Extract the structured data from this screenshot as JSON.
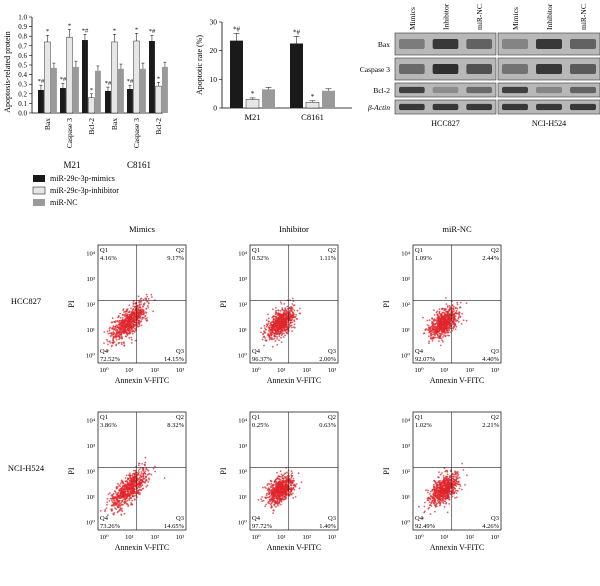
{
  "colors": {
    "mimics": "#1a1a1a",
    "inhibitor": "#e6e6e6",
    "nc": "#9a9a9a",
    "dots": "#e0262b"
  },
  "legend": [
    "miR-29c-3p-mimics",
    "miR-29c-3p-inhibitor",
    "miR-NC"
  ],
  "chart_data": [
    {
      "type": "bar",
      "ylabel": "Apoptosis-related protein",
      "ylim": [
        0,
        1.0
      ],
      "yticks": [
        "0.0",
        "0.1",
        "0.2",
        "0.3",
        "0.4",
        "0.5",
        "0.6",
        "0.7",
        "0.8",
        "0.9",
        "1.0"
      ],
      "groups": [
        "M21",
        "C8161"
      ],
      "categories": [
        "Bax",
        "Caspase 3",
        "Bcl-2"
      ],
      "series": [
        {
          "name": "miR-29c-3p-mimics",
          "values": [
            [
              0.24,
              0.26,
              0.76
            ],
            [
              0.23,
              0.25,
              0.75
            ]
          ],
          "err": [
            [
              0.05,
              0.05,
              0.06
            ],
            [
              0.04,
              0.04,
              0.06
            ]
          ]
        },
        {
          "name": "miR-29c-3p-inhibitor",
          "values": [
            [
              0.74,
              0.79,
              0.16
            ],
            [
              0.74,
              0.75,
              0.28
            ]
          ],
          "err": [
            [
              0.07,
              0.08,
              0.04
            ],
            [
              0.08,
              0.08,
              0.04
            ]
          ]
        },
        {
          "name": "miR-NC",
          "values": [
            [
              0.47,
              0.48,
              0.44
            ],
            [
              0.46,
              0.46,
              0.48
            ]
          ],
          "err": [
            [
              0.05,
              0.06,
              0.05
            ],
            [
              0.05,
              0.06,
              0.05
            ]
          ]
        }
      ],
      "marks": {
        "mimics": [
          [
            "*#",
            "*#",
            "*#"
          ],
          [
            "*#",
            "*#",
            "*#"
          ]
        ],
        "inhibitor": [
          [
            "*",
            "*",
            "*"
          ],
          [
            "*",
            "*",
            "*"
          ]
        ]
      }
    },
    {
      "type": "bar",
      "ylabel": "Apoptotic rate (%)",
      "ylim": [
        0,
        30
      ],
      "yticks": [
        "0",
        "10",
        "20",
        "30"
      ],
      "categories": [
        "M21",
        "C8161"
      ],
      "series": [
        {
          "name": "miR-29c-3p-mimics",
          "values": [
            23.5,
            22.5
          ],
          "err": [
            2.5,
            2.5
          ]
        },
        {
          "name": "miR-29c-3p-inhibitor",
          "values": [
            3.0,
            2.0
          ],
          "err": [
            0.5,
            0.5
          ]
        },
        {
          "name": "miR-NC",
          "values": [
            6.5,
            6.0
          ],
          "err": [
            0.7,
            0.7
          ]
        }
      ],
      "marks": {
        "mimics": [
          "*#",
          "*#"
        ],
        "inhibitor": [
          "*",
          "*"
        ]
      }
    },
    {
      "type": "scatter",
      "xlabel": "Annexin V-FITC",
      "ylabel": "PI",
      "rows": [
        "HCC827",
        "NCI-H524"
      ],
      "columns": [
        "Mimics",
        "Inhibitor",
        "miR-NC"
      ],
      "xticks": [
        "10⁰",
        "10¹",
        "10²",
        "10³"
      ],
      "yticks": [
        "10⁰",
        "10¹",
        "10²",
        "10³",
        "10⁴"
      ],
      "quadrant_names": [
        "Q1",
        "Q2",
        "Q3",
        "Q4"
      ],
      "panels": [
        [
          {
            "Q1": "4.16%",
            "Q2": "9.17%",
            "Q3": "14.15%",
            "Q4": "72.52%"
          },
          {
            "Q1": "0.52%",
            "Q2": "1.11%",
            "Q3": "2.00%",
            "Q4": "96.37%"
          },
          {
            "Q1": "1.09%",
            "Q2": "2.44%",
            "Q3": "4.40%",
            "Q4": "92.07%"
          }
        ],
        [
          {
            "Q1": "3.86%",
            "Q2": "8.32%",
            "Q3": "14.65%",
            "Q4": "73.26%"
          },
          {
            "Q1": "0.25%",
            "Q2": "0.63%",
            "Q3": "1.40%",
            "Q4": "97.72%"
          },
          {
            "Q1": "1.02%",
            "Q2": "2.21%",
            "Q3": "4.26%",
            "Q4": "92.49%"
          }
        ]
      ]
    }
  ],
  "western_blot": {
    "lanes": [
      "Mimics",
      "Inhibitor",
      "miR-NC"
    ],
    "proteins": [
      "Bax",
      "Caspase 3",
      "Bcl-2",
      "β-Actin"
    ],
    "cell_lines": [
      "HCC827",
      "NCI-H524"
    ],
    "intensity": [
      [
        [
          0.45,
          0.85,
          0.6
        ],
        [
          0.55,
          0.9,
          0.7
        ],
        [
          0.8,
          0.35,
          0.55
        ],
        [
          0.85,
          0.85,
          0.85
        ]
      ],
      [
        [
          0.4,
          0.85,
          0.6
        ],
        [
          0.5,
          0.85,
          0.65
        ],
        [
          0.8,
          0.4,
          0.6
        ],
        [
          0.85,
          0.85,
          0.85
        ]
      ]
    ]
  }
}
